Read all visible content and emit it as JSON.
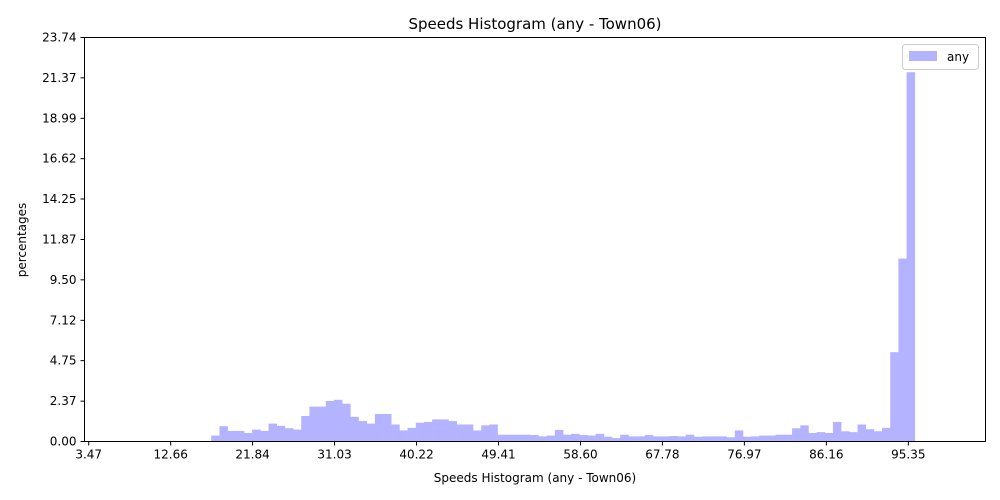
{
  "chart_data": {
    "type": "bar",
    "title": "Speeds Histogram (any - Town06)",
    "xlabel": "Speeds Histogram (any - Town06)",
    "ylabel": "percentages",
    "xlim": [
      3.0,
      104.0
    ],
    "ylim": [
      0,
      23.74
    ],
    "xticks": [
      "3.47",
      "12.66",
      "21.84",
      "31.03",
      "40.22",
      "49.41",
      "58.60",
      "67.78",
      "76.97",
      "86.16",
      "95.35"
    ],
    "yticks": [
      "0.00",
      "2.37",
      "4.75",
      "7.12",
      "9.50",
      "11.87",
      "14.25",
      "16.62",
      "18.99",
      "21.37",
      "23.74"
    ],
    "legend_position": "top-right",
    "grid": false,
    "bar_color": "#b3b3ff",
    "bin_width": 0.917,
    "x_start": 17.21,
    "series": [
      {
        "name": "any",
        "values": [
          0.35,
          0.9,
          0.62,
          0.62,
          0.5,
          0.7,
          0.62,
          1.05,
          0.92,
          0.78,
          0.7,
          1.5,
          2.05,
          2.05,
          2.38,
          2.45,
          2.22,
          1.45,
          1.2,
          1.05,
          1.62,
          1.62,
          1.0,
          0.65,
          0.8,
          1.1,
          1.15,
          1.3,
          1.3,
          1.2,
          1.0,
          1.0,
          0.65,
          0.95,
          1.0,
          0.4,
          0.4,
          0.4,
          0.4,
          0.38,
          0.3,
          0.35,
          0.68,
          0.4,
          0.45,
          0.38,
          0.35,
          0.45,
          0.28,
          0.2,
          0.4,
          0.3,
          0.3,
          0.38,
          0.3,
          0.3,
          0.32,
          0.3,
          0.4,
          0.28,
          0.3,
          0.3,
          0.3,
          0.25,
          0.65,
          0.28,
          0.3,
          0.35,
          0.35,
          0.4,
          0.4,
          0.78,
          0.95,
          0.5,
          0.55,
          0.5,
          1.15,
          0.6,
          0.55,
          1.0,
          0.72,
          0.6,
          0.8,
          5.25,
          10.75,
          21.7
        ]
      }
    ]
  }
}
